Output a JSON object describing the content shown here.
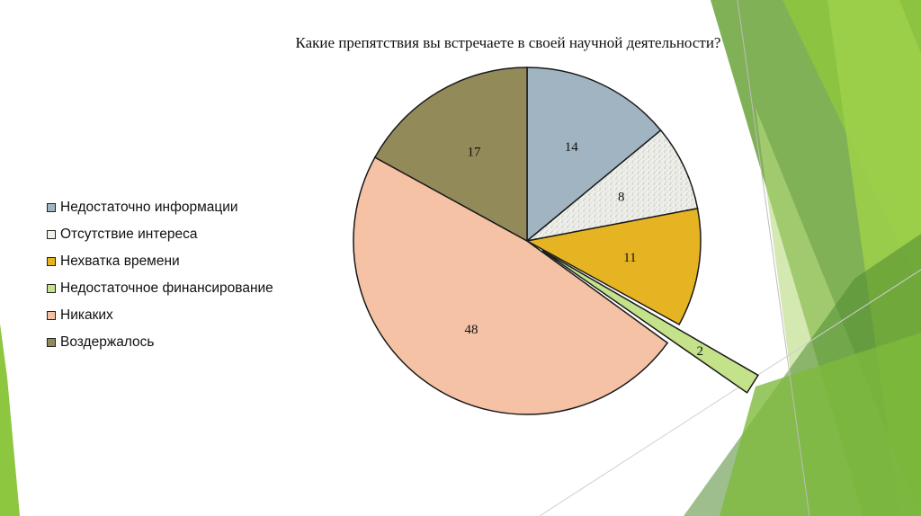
{
  "theme": {
    "accent_colors": [
      "#8dc63f",
      "#6aa338",
      "#4e8a2f",
      "#b7d97f"
    ]
  },
  "chart_data": {
    "type": "pie",
    "title": "Какие препятствия вы встречаете в своей научной деятельности?",
    "slices": [
      {
        "label": "Недостаточно информации",
        "value": 14,
        "color": "#a0b4c1",
        "exploded": false
      },
      {
        "label": "Отсутствие интереса",
        "value": 8,
        "color": "#efefea",
        "exploded": false
      },
      {
        "label": "Нехватка времени",
        "value": 11,
        "color": "#e6b422",
        "exploded": false
      },
      {
        "label": "Недостаточное финансирование",
        "value": 2,
        "color": "#c3e28a",
        "exploded": true
      },
      {
        "label": "Никаких",
        "value": 48,
        "color": "#f5c2a6",
        "exploded": false
      },
      {
        "label": "Воздержалось",
        "value": 17,
        "color": "#938a5a",
        "exploded": false
      }
    ],
    "legend_position": "left"
  }
}
